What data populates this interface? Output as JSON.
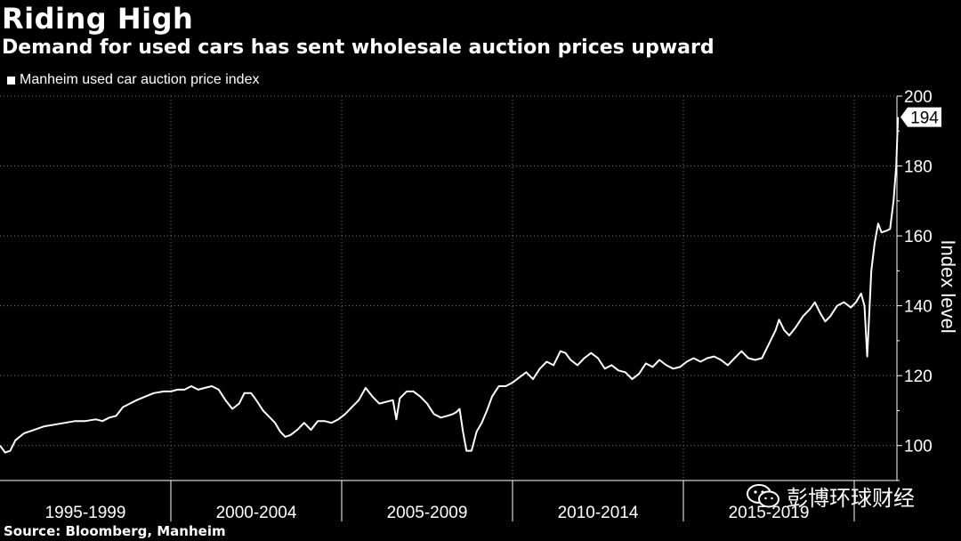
{
  "header": {
    "title": "Riding High",
    "subtitle": "Demand for used cars has sent wholesale auction prices upward"
  },
  "legend": {
    "label": "Manheim used car auction price index"
  },
  "footer": {
    "source": "Source: Bloomberg, Manheim"
  },
  "watermark": {
    "text": "彭博环球财经"
  },
  "colors": {
    "background": "#000000",
    "line": "#ffffff",
    "grid": "#7a7a7a"
  },
  "chart_data": {
    "type": "line",
    "x_unit": "year (decimal)",
    "xlim": [
      1995.0,
      2021.25
    ],
    "ylim": [
      90,
      200
    ],
    "ylabel": "Index level",
    "y_ticks": [
      100,
      120,
      140,
      160,
      180,
      200
    ],
    "x_categories": [
      {
        "label": "1995-1999",
        "start": 1995,
        "end": 2000
      },
      {
        "label": "2000-2004",
        "start": 2000,
        "end": 2005
      },
      {
        "label": "2005-2009",
        "start": 2005,
        "end": 2010
      },
      {
        "label": "2010-2014",
        "start": 2010,
        "end": 2015
      },
      {
        "label": "2015-2019",
        "start": 2015,
        "end": 2020
      }
    ],
    "last_value_label": "194",
    "series": [
      {
        "name": "Manheim used car auction price index",
        "points": [
          [
            1995.0,
            100.0
          ],
          [
            1995.15,
            98.0
          ],
          [
            1995.3,
            98.5
          ],
          [
            1995.45,
            101.5
          ],
          [
            1995.7,
            103.5
          ],
          [
            1996.0,
            104.5
          ],
          [
            1996.3,
            105.5
          ],
          [
            1996.6,
            106.0
          ],
          [
            1996.9,
            106.5
          ],
          [
            1997.2,
            107.0
          ],
          [
            1997.5,
            107.0
          ],
          [
            1997.8,
            107.5
          ],
          [
            1998.0,
            107.0
          ],
          [
            1998.2,
            108.0
          ],
          [
            1998.4,
            108.5
          ],
          [
            1998.6,
            111.0
          ],
          [
            1998.8,
            112.0
          ],
          [
            1999.0,
            113.0
          ],
          [
            1999.25,
            114.0
          ],
          [
            1999.5,
            115.0
          ],
          [
            1999.8,
            115.5
          ],
          [
            2000.0,
            115.5
          ],
          [
            2000.2,
            116.0
          ],
          [
            2000.4,
            116.0
          ],
          [
            2000.6,
            117.0
          ],
          [
            2000.8,
            116.0
          ],
          [
            2001.0,
            116.5
          ],
          [
            2001.2,
            117.0
          ],
          [
            2001.4,
            116.0
          ],
          [
            2001.6,
            113.0
          ],
          [
            2001.8,
            110.5
          ],
          [
            2002.0,
            112.0
          ],
          [
            2002.15,
            115.0
          ],
          [
            2002.35,
            115.0
          ],
          [
            2002.5,
            113.0
          ],
          [
            2002.7,
            110.0
          ],
          [
            2002.9,
            108.0
          ],
          [
            2003.05,
            106.5
          ],
          [
            2003.2,
            104.0
          ],
          [
            2003.35,
            102.5
          ],
          [
            2003.5,
            103.0
          ],
          [
            2003.7,
            104.5
          ],
          [
            2003.9,
            106.5
          ],
          [
            2004.1,
            104.5
          ],
          [
            2004.3,
            107.0
          ],
          [
            2004.5,
            107.0
          ],
          [
            2004.7,
            106.5
          ],
          [
            2004.9,
            107.5
          ],
          [
            2005.1,
            109.0
          ],
          [
            2005.3,
            111.0
          ],
          [
            2005.5,
            113.0
          ],
          [
            2005.7,
            116.5
          ],
          [
            2005.9,
            114.0
          ],
          [
            2006.1,
            112.0
          ],
          [
            2006.3,
            112.5
          ],
          [
            2006.5,
            113.0
          ],
          [
            2006.6,
            107.5
          ],
          [
            2006.7,
            113.5
          ],
          [
            2006.9,
            115.5
          ],
          [
            2007.1,
            115.5
          ],
          [
            2007.3,
            114.0
          ],
          [
            2007.5,
            112.0
          ],
          [
            2007.7,
            109.0
          ],
          [
            2007.9,
            108.0
          ],
          [
            2008.1,
            108.5
          ],
          [
            2008.25,
            109.0
          ],
          [
            2008.35,
            109.5
          ],
          [
            2008.45,
            110.5
          ],
          [
            2008.55,
            104.0
          ],
          [
            2008.65,
            98.5
          ],
          [
            2008.8,
            98.5
          ],
          [
            2008.95,
            104.0
          ],
          [
            2009.1,
            106.5
          ],
          [
            2009.25,
            110.0
          ],
          [
            2009.4,
            114.0
          ],
          [
            2009.6,
            117.0
          ],
          [
            2009.8,
            117.0
          ],
          [
            2010.0,
            118.0
          ],
          [
            2010.2,
            119.5
          ],
          [
            2010.4,
            121.0
          ],
          [
            2010.6,
            119.0
          ],
          [
            2010.8,
            122.0
          ],
          [
            2011.0,
            124.0
          ],
          [
            2011.2,
            123.0
          ],
          [
            2011.4,
            127.0
          ],
          [
            2011.55,
            126.5
          ],
          [
            2011.7,
            124.5
          ],
          [
            2011.9,
            123.0
          ],
          [
            2012.1,
            125.0
          ],
          [
            2012.3,
            126.5
          ],
          [
            2012.5,
            125.0
          ],
          [
            2012.7,
            122.0
          ],
          [
            2012.9,
            123.0
          ],
          [
            2013.1,
            121.5
          ],
          [
            2013.3,
            121.0
          ],
          [
            2013.5,
            119.0
          ],
          [
            2013.7,
            120.5
          ],
          [
            2013.9,
            123.5
          ],
          [
            2014.1,
            122.5
          ],
          [
            2014.3,
            124.5
          ],
          [
            2014.5,
            123.0
          ],
          [
            2014.7,
            122.0
          ],
          [
            2014.9,
            122.5
          ],
          [
            2015.1,
            124.0
          ],
          [
            2015.3,
            125.0
          ],
          [
            2015.5,
            124.0
          ],
          [
            2015.7,
            125.0
          ],
          [
            2015.9,
            125.5
          ],
          [
            2016.1,
            124.5
          ],
          [
            2016.3,
            123.0
          ],
          [
            2016.5,
            125.0
          ],
          [
            2016.7,
            127.0
          ],
          [
            2016.9,
            125.0
          ],
          [
            2017.1,
            124.5
          ],
          [
            2017.3,
            125.0
          ],
          [
            2017.5,
            129.0
          ],
          [
            2017.7,
            133.0
          ],
          [
            2017.8,
            136.0
          ],
          [
            2017.95,
            133.0
          ],
          [
            2018.1,
            131.5
          ],
          [
            2018.3,
            134.0
          ],
          [
            2018.5,
            137.0
          ],
          [
            2018.7,
            139.0
          ],
          [
            2018.85,
            141.0
          ],
          [
            2019.0,
            138.0
          ],
          [
            2019.15,
            135.5
          ],
          [
            2019.3,
            137.0
          ],
          [
            2019.5,
            140.0
          ],
          [
            2019.7,
            141.0
          ],
          [
            2019.9,
            139.5
          ],
          [
            2020.05,
            141.0
          ],
          [
            2020.2,
            143.5
          ],
          [
            2020.3,
            140.0
          ],
          [
            2020.38,
            125.5
          ],
          [
            2020.5,
            150.0
          ],
          [
            2020.6,
            158.0
          ],
          [
            2020.7,
            163.5
          ],
          [
            2020.8,
            161.0
          ],
          [
            2020.95,
            161.5
          ],
          [
            2021.05,
            162.0
          ],
          [
            2021.15,
            170.0
          ],
          [
            2021.23,
            180.0
          ],
          [
            2021.28,
            194.0
          ]
        ]
      }
    ]
  }
}
